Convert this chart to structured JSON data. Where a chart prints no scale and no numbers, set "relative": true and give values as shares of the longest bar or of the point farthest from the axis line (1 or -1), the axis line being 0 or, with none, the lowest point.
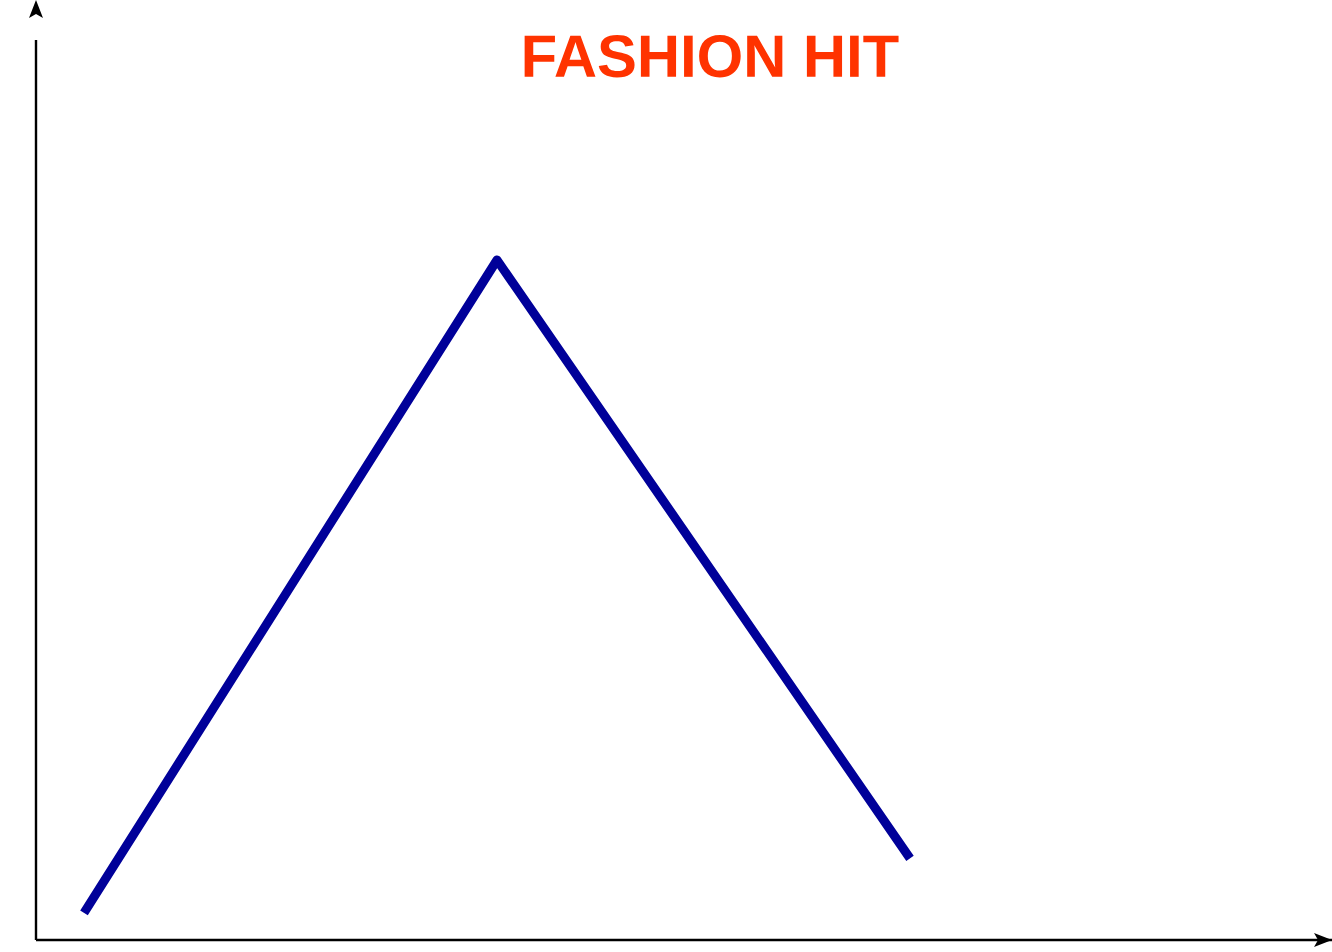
{
  "chart_data": {
    "type": "line",
    "title": "FASHION HIT",
    "relative": true,
    "categories": [
      null,
      null,
      null
    ],
    "series": [
      {
        "color": "#000099",
        "values": [
          0.04,
          1,
          0.12
        ]
      }
    ],
    "marker": "none",
    "line_style": "solid"
  }
}
